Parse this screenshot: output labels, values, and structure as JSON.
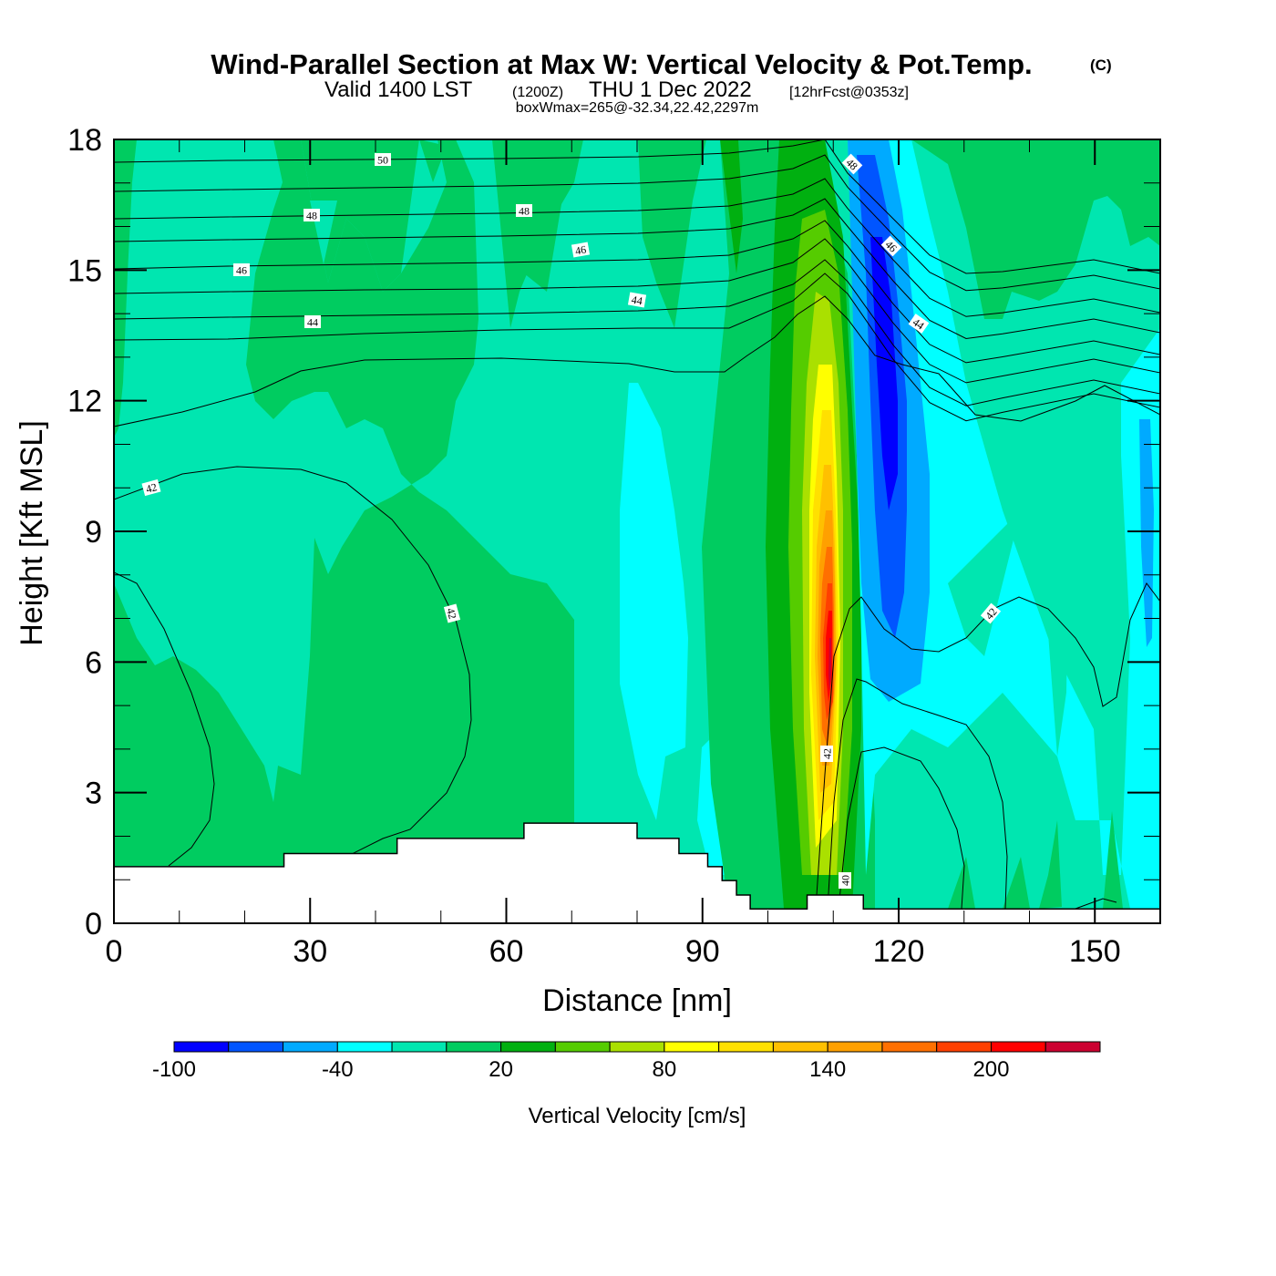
{
  "chart_data": {
    "type": "contour",
    "title": "Wind-Parallel Section at Max W: Vertical Velocity & Pot.Temp.",
    "title_mark": "(C)",
    "subtitle_main": "Valid 1400 LST",
    "subtitle_utc": "(1200Z)",
    "subtitle_date": "THU 1 Dec 2022",
    "subtitle_fcst": "[12hrFcst@0353z]",
    "subtitle2": "boxWmax=265@-32.34,22.42,2297m",
    "xlabel": "Distance [nm]",
    "ylabel": "Height [Kft MSL]",
    "xlim": [
      0,
      160
    ],
    "ylim": [
      0,
      18
    ],
    "xticks": [
      0,
      30,
      60,
      90,
      120,
      150
    ],
    "yticks": [
      0,
      3,
      6,
      9,
      12,
      15,
      18
    ],
    "xtick_labels": [
      "0",
      "30",
      "60",
      "90",
      "120",
      "150"
    ],
    "ytick_labels": [
      "0",
      "3",
      "6",
      "9",
      "12",
      "15",
      "18"
    ],
    "x_minor_step": 10,
    "y_minor_step": 1,
    "colorbar": {
      "label": "Vertical Velocity [cm/s]",
      "levels": [
        -100,
        -80,
        -60,
        -40,
        -20,
        0,
        20,
        40,
        60,
        80,
        100,
        120,
        140,
        160,
        180,
        200,
        220,
        240
      ],
      "tick_values": [
        -100,
        -40,
        20,
        80,
        140,
        200
      ],
      "tick_labels": [
        "-100",
        "-40",
        "20",
        "80",
        "140",
        "200"
      ],
      "colors": [
        "#0000ff",
        "#0055ff",
        "#00aaff",
        "#00ffff",
        "#00e6b0",
        "#00cc60",
        "#00b010",
        "#55cc00",
        "#aae000",
        "#ffff00",
        "#ffe000",
        "#ffc000",
        "#ffa000",
        "#ff7000",
        "#ff4000",
        "#ff0000",
        "#cc0030"
      ],
      "placement": "bottom"
    },
    "pot_temp_contour_labels": [
      "50",
      "48",
      "48",
      "48",
      "46",
      "46",
      "46",
      "44",
      "44",
      "44",
      "42",
      "42",
      "42",
      "42",
      "40"
    ],
    "terrain_profile_nm_kft": [
      [
        0,
        1.3
      ],
      [
        26,
        1.3
      ],
      [
        26,
        1.6
      ],
      [
        43.3,
        1.6
      ],
      [
        43.3,
        1.95
      ],
      [
        62.7,
        1.95
      ],
      [
        62.7,
        2.3
      ],
      [
        80,
        2.3
      ],
      [
        80,
        1.95
      ],
      [
        86.4,
        1.95
      ],
      [
        86.4,
        1.6
      ],
      [
        90.8,
        1.6
      ],
      [
        90.8,
        1.3
      ],
      [
        93,
        1.3
      ],
      [
        93,
        0.98
      ],
      [
        95.2,
        0.98
      ],
      [
        95.2,
        0.65
      ],
      [
        97.3,
        0.65
      ],
      [
        97.3,
        0.33
      ],
      [
        106,
        0.33
      ],
      [
        106,
        0.65
      ],
      [
        114.6,
        0.65
      ],
      [
        114.6,
        0.33
      ],
      [
        160,
        0.33
      ]
    ],
    "max_w_cm_s": 265
  }
}
